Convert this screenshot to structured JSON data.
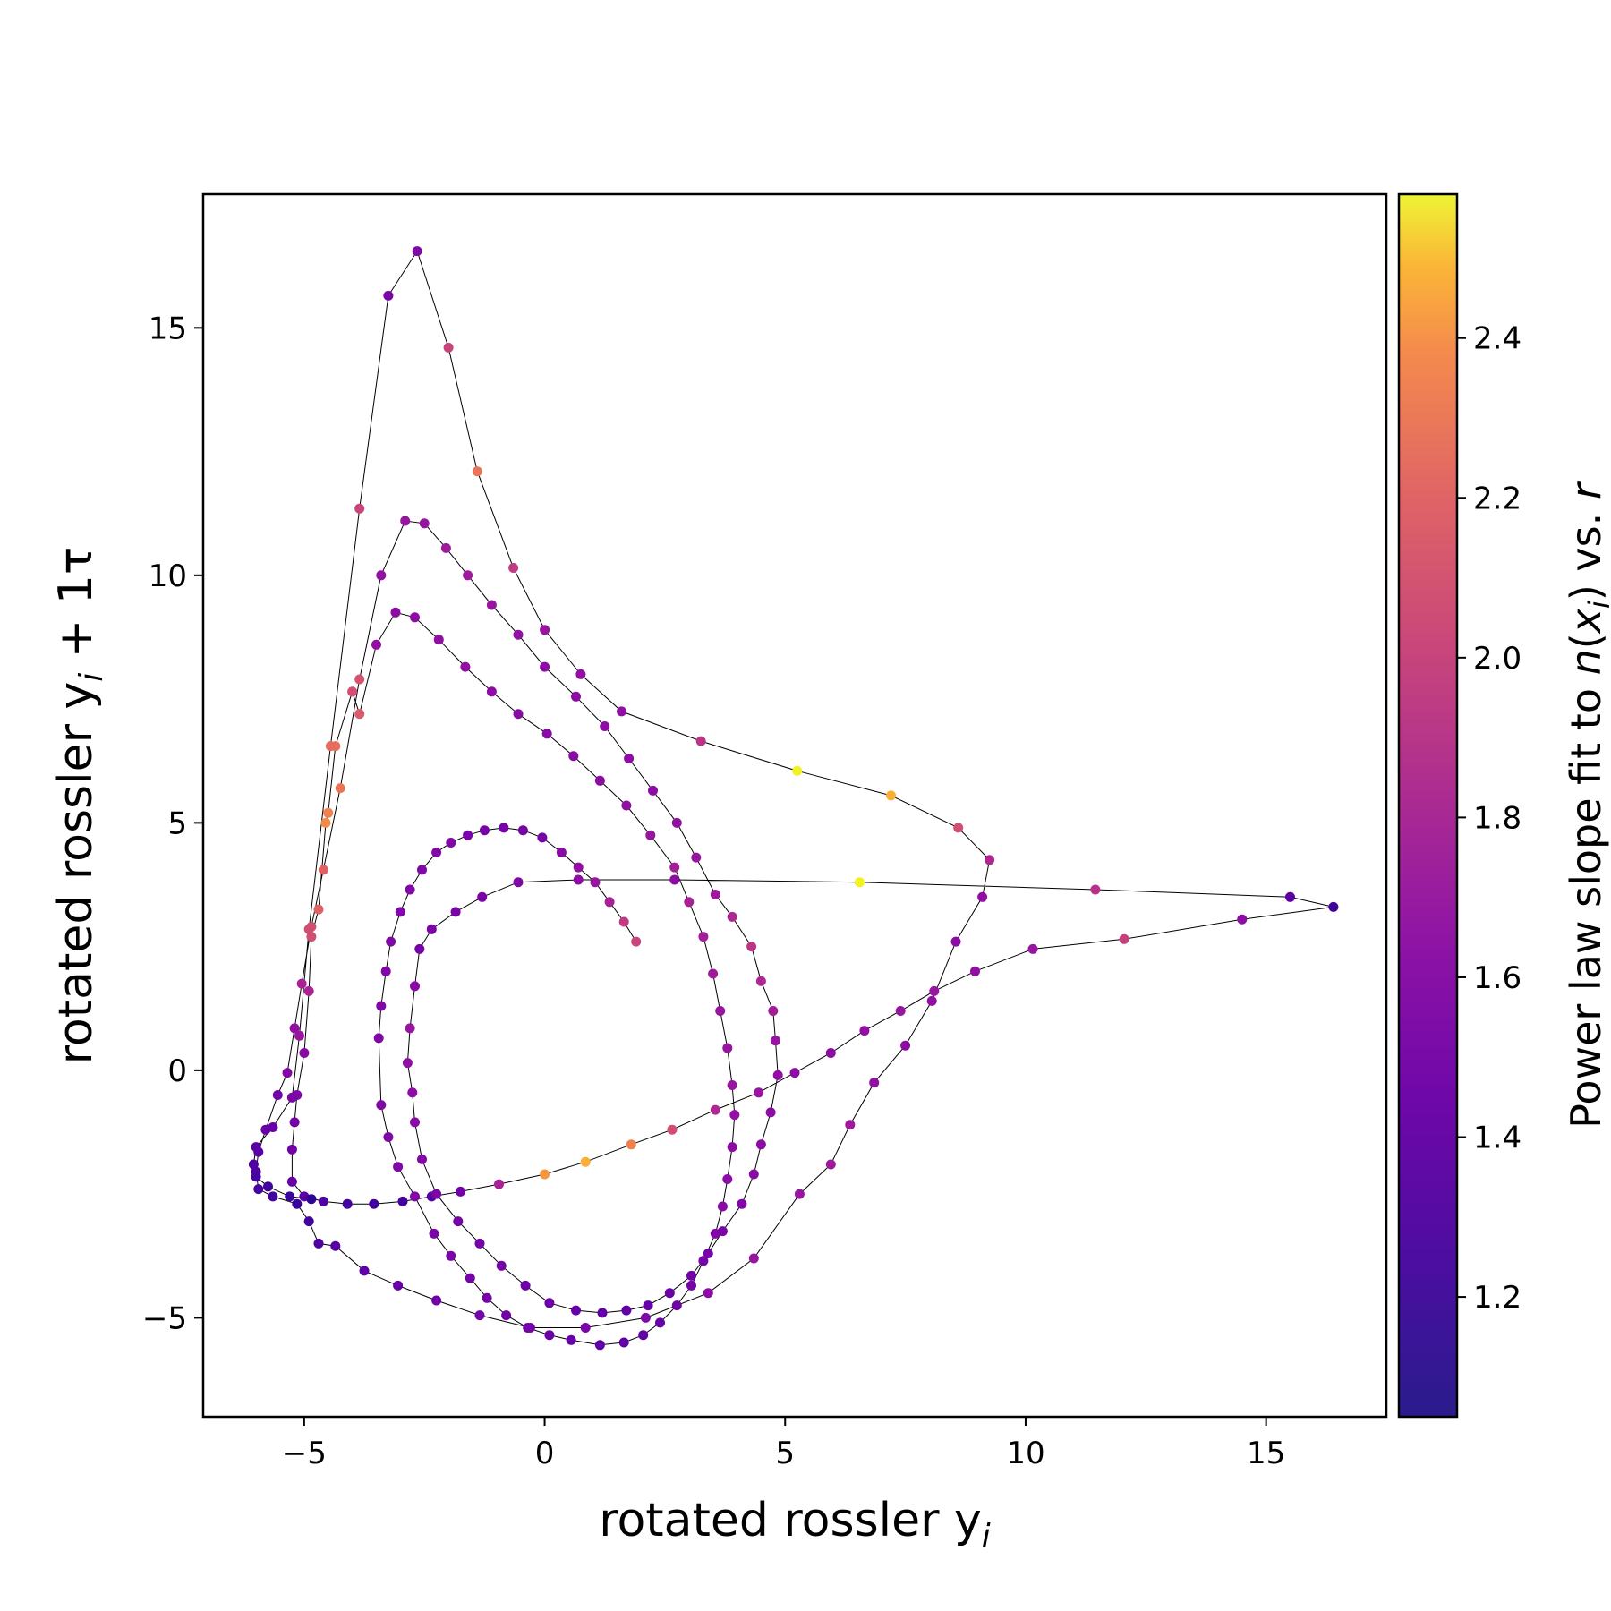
{
  "chart_data": {
    "type": "scatter",
    "xlabel": {
      "main": "rotated rossler y",
      "sub": "i"
    },
    "ylabel": {
      "main": "rotated rossler y",
      "sub": "i",
      "tail": " + 1τ"
    },
    "colorbar_label": {
      "p1": "Power law slope fit to ",
      "n": "n",
      "p2": "(",
      "x": "x",
      "xsub": "i",
      "p3": ") vs. ",
      "r": "r"
    },
    "xlim": [
      -7.1,
      17.5
    ],
    "ylim": [
      -7.0,
      17.7
    ],
    "xticks": [
      -5,
      0,
      5,
      10,
      15
    ],
    "yticks": [
      -5,
      0,
      5,
      10,
      15
    ],
    "xtick_labels": [
      "−5",
      "0",
      "5",
      "10",
      "15"
    ],
    "ytick_labels": [
      "−5",
      "0",
      "5",
      "10",
      "15"
    ],
    "colorbar": {
      "colormap": "plasma",
      "range": [
        1.05,
        2.58
      ],
      "ticks": [
        1.2,
        1.4,
        1.6,
        1.8,
        2.0,
        2.2,
        2.4
      ],
      "tick_labels": [
        "1.2",
        "1.4",
        "1.6",
        "1.8",
        "2.0",
        "2.2",
        "2.4"
      ]
    },
    "line_color": "#000000",
    "grid": false,
    "legend": "none",
    "points": [
      [
        1.9,
        2.6,
        1.8
      ],
      [
        1.65,
        3.0,
        1.75
      ],
      [
        1.35,
        3.4,
        1.62
      ],
      [
        1.05,
        3.8,
        1.55
      ],
      [
        0.7,
        4.1,
        1.52
      ],
      [
        0.35,
        4.4,
        1.48
      ],
      [
        -0.05,
        4.7,
        1.42
      ],
      [
        -0.45,
        4.85,
        1.4
      ],
      [
        -0.85,
        4.9,
        1.4
      ],
      [
        -1.25,
        4.85,
        1.4
      ],
      [
        -1.6,
        4.75,
        1.42
      ],
      [
        -1.95,
        4.6,
        1.45
      ],
      [
        -2.25,
        4.4,
        1.45
      ],
      [
        -2.55,
        4.05,
        1.45
      ],
      [
        -2.8,
        3.65,
        1.45
      ],
      [
        -3.0,
        3.2,
        1.45
      ],
      [
        -3.2,
        2.6,
        1.45
      ],
      [
        -3.3,
        2.0,
        1.45
      ],
      [
        -3.4,
        1.3,
        1.45
      ],
      [
        -3.45,
        0.65,
        1.45
      ],
      [
        -3.4,
        -0.7,
        1.45
      ],
      [
        -3.25,
        -1.35,
        1.45
      ],
      [
        -3.05,
        -1.95,
        1.45
      ],
      [
        -2.7,
        -2.55,
        1.45
      ],
      [
        -2.3,
        -3.3,
        1.42
      ],
      [
        -1.95,
        -3.75,
        1.42
      ],
      [
        -1.55,
        -4.2,
        1.4
      ],
      [
        -1.2,
        -4.6,
        1.4
      ],
      [
        -0.8,
        -4.95,
        1.38
      ],
      [
        -0.35,
        -5.2,
        1.38
      ],
      [
        0.1,
        -5.35,
        1.36
      ],
      [
        0.55,
        -5.45,
        1.34
      ],
      [
        1.15,
        -5.55,
        1.33
      ],
      [
        1.65,
        -5.5,
        1.32
      ],
      [
        2.05,
        -5.35,
        1.33
      ],
      [
        2.4,
        -5.1,
        1.35
      ],
      [
        2.75,
        -4.75,
        1.38
      ],
      [
        3.05,
        -4.35,
        1.4
      ],
      [
        3.3,
        -3.85,
        1.42
      ],
      [
        3.55,
        -3.3,
        1.45
      ],
      [
        3.7,
        -2.75,
        1.48
      ],
      [
        3.8,
        -2.2,
        1.5
      ],
      [
        3.9,
        -1.55,
        1.5
      ],
      [
        3.95,
        -0.9,
        1.52
      ],
      [
        3.9,
        -0.3,
        1.55
      ],
      [
        3.8,
        0.45,
        1.55
      ],
      [
        3.65,
        1.2,
        1.55
      ],
      [
        3.5,
        1.95,
        1.58
      ],
      [
        3.3,
        2.7,
        1.6
      ],
      [
        3.0,
        3.4,
        1.62
      ],
      [
        2.7,
        4.1,
        1.6
      ],
      [
        2.2,
        4.75,
        1.55
      ],
      [
        1.7,
        5.35,
        1.52
      ],
      [
        1.15,
        5.85,
        1.5
      ],
      [
        0.6,
        6.35,
        1.48
      ],
      [
        0.05,
        6.8,
        1.48
      ],
      [
        -0.55,
        7.2,
        1.48
      ],
      [
        -1.1,
        7.65,
        1.5
      ],
      [
        -1.65,
        8.15,
        1.52
      ],
      [
        -2.2,
        8.7,
        1.52
      ],
      [
        -2.7,
        9.15,
        1.5
      ],
      [
        -3.1,
        9.25,
        1.5
      ],
      [
        -3.5,
        8.6,
        1.52
      ],
      [
        -3.85,
        7.2,
        1.92
      ],
      [
        -4.0,
        7.65,
        1.85
      ],
      [
        -4.35,
        6.55,
        2.02
      ],
      [
        -4.5,
        5.2,
        2.1
      ],
      [
        -4.55,
        5.0,
        2.15
      ],
      [
        -4.7,
        3.25,
        1.95
      ],
      [
        -4.85,
        2.7,
        1.85
      ],
      [
        -4.9,
        1.6,
        1.62
      ],
      [
        -5.0,
        0.35,
        1.48
      ],
      [
        -5.15,
        -0.5,
        1.45
      ],
      [
        -5.2,
        -1.05,
        1.4
      ],
      [
        -5.25,
        -1.6,
        1.38
      ],
      [
        -5.25,
        -2.25,
        1.35
      ],
      [
        -5.0,
        -2.55,
        1.3
      ],
      [
        -4.6,
        -2.65,
        1.25
      ],
      [
        -4.1,
        -2.7,
        1.22
      ],
      [
        -3.55,
        -2.7,
        1.2
      ],
      [
        -2.95,
        -2.65,
        1.22
      ],
      [
        -2.35,
        -2.55,
        1.28
      ],
      [
        -1.75,
        -2.45,
        1.38
      ],
      [
        -0.95,
        -2.3,
        1.62
      ],
      [
        0.0,
        -2.1,
        2.2
      ],
      [
        0.85,
        -1.85,
        2.3
      ],
      [
        1.8,
        -1.5,
        2.1
      ],
      [
        2.65,
        -1.2,
        1.85
      ],
      [
        3.55,
        -0.8,
        1.65
      ],
      [
        4.45,
        -0.45,
        1.55
      ],
      [
        5.2,
        -0.05,
        1.5
      ],
      [
        5.95,
        0.35,
        1.5
      ],
      [
        6.65,
        0.8,
        1.52
      ],
      [
        7.4,
        1.2,
        1.55
      ],
      [
        8.1,
        1.6,
        1.55
      ],
      [
        8.95,
        2.0,
        1.52
      ],
      [
        10.15,
        2.45,
        1.55
      ],
      [
        12.05,
        2.65,
        1.78
      ],
      [
        14.5,
        3.05,
        1.5
      ],
      [
        16.4,
        3.3,
        1.2
      ],
      [
        15.5,
        3.5,
        1.3
      ],
      [
        11.45,
        3.65,
        1.7
      ],
      [
        6.55,
        3.8,
        2.55
      ],
      [
        2.7,
        3.85,
        1.5
      ],
      [
        0.7,
        3.85,
        1.5
      ],
      [
        -0.55,
        3.8,
        1.45
      ],
      [
        -1.3,
        3.5,
        1.42
      ],
      [
        -1.85,
        3.2,
        1.42
      ],
      [
        -2.35,
        2.85,
        1.42
      ],
      [
        -2.6,
        2.45,
        1.4
      ],
      [
        -2.7,
        1.7,
        1.48
      ],
      [
        -2.8,
        0.85,
        1.55
      ],
      [
        -2.85,
        0.15,
        1.52
      ],
      [
        -2.75,
        -0.45,
        1.5
      ],
      [
        -2.7,
        -1.05,
        1.48
      ],
      [
        -2.55,
        -1.8,
        1.45
      ],
      [
        -2.25,
        -2.5,
        1.42
      ],
      [
        -1.8,
        -3.05,
        1.4
      ],
      [
        -1.35,
        -3.5,
        1.4
      ],
      [
        -0.9,
        -3.95,
        1.4
      ],
      [
        -0.4,
        -4.35,
        1.38
      ],
      [
        0.1,
        -4.7,
        1.37
      ],
      [
        0.65,
        -4.85,
        1.35
      ],
      [
        1.2,
        -4.9,
        1.33
      ],
      [
        1.7,
        -4.85,
        1.33
      ],
      [
        2.15,
        -4.75,
        1.34
      ],
      [
        2.6,
        -4.5,
        1.36
      ],
      [
        3.05,
        -4.15,
        1.38
      ],
      [
        3.4,
        -3.7,
        1.4
      ],
      [
        3.7,
        -3.25,
        1.42
      ],
      [
        4.1,
        -2.7,
        1.45
      ],
      [
        4.35,
        -2.1,
        1.48
      ],
      [
        4.5,
        -1.5,
        1.5
      ],
      [
        4.7,
        -0.85,
        1.5
      ],
      [
        4.85,
        -0.1,
        1.52
      ],
      [
        4.8,
        0.6,
        1.55
      ],
      [
        4.75,
        1.2,
        1.6
      ],
      [
        4.5,
        1.8,
        1.65
      ],
      [
        4.3,
        2.5,
        1.72
      ],
      [
        3.9,
        3.1,
        1.65
      ],
      [
        3.55,
        3.55,
        1.58
      ],
      [
        3.15,
        4.3,
        1.55
      ],
      [
        2.75,
        5.0,
        1.52
      ],
      [
        2.25,
        5.65,
        1.5
      ],
      [
        1.75,
        6.3,
        1.5
      ],
      [
        1.25,
        6.95,
        1.5
      ],
      [
        0.65,
        7.55,
        1.5
      ],
      [
        0.0,
        8.15,
        1.5
      ],
      [
        -0.55,
        8.8,
        1.52
      ],
      [
        -1.1,
        9.4,
        1.55
      ],
      [
        -1.6,
        10.0,
        1.58
      ],
      [
        -2.05,
        10.55,
        1.58
      ],
      [
        -2.5,
        11.05,
        1.55
      ],
      [
        -2.9,
        11.1,
        1.55
      ],
      [
        -3.4,
        10.0,
        1.52
      ],
      [
        -3.85,
        7.9,
        1.88
      ],
      [
        -4.25,
        5.7,
        2.05
      ],
      [
        -4.6,
        4.05,
        1.95
      ],
      [
        -4.85,
        2.9,
        1.85
      ],
      [
        -5.05,
        1.75,
        1.62
      ],
      [
        -5.2,
        0.85,
        1.52
      ],
      [
        -5.35,
        -0.05,
        1.45
      ],
      [
        -5.55,
        -0.5,
        1.4
      ],
      [
        -5.8,
        -1.2,
        1.35
      ],
      [
        -5.95,
        -1.65,
        1.3
      ],
      [
        -6.0,
        -2.05,
        1.25
      ],
      [
        -5.95,
        -2.4,
        1.22
      ],
      [
        -5.65,
        -2.55,
        1.2
      ],
      [
        -5.15,
        -2.7,
        1.18
      ],
      [
        -4.9,
        -3.05,
        1.2
      ],
      [
        -4.7,
        -3.5,
        1.25
      ],
      [
        -4.35,
        -3.55,
        1.28
      ],
      [
        -3.75,
        -4.05,
        1.32
      ],
      [
        -3.05,
        -4.35,
        1.35
      ],
      [
        -2.25,
        -4.65,
        1.38
      ],
      [
        -1.35,
        -4.95,
        1.4
      ],
      [
        -0.3,
        -5.2,
        1.4
      ],
      [
        0.85,
        -5.2,
        1.42
      ],
      [
        2.1,
        -5.0,
        1.45
      ],
      [
        3.4,
        -4.5,
        1.5
      ],
      [
        4.35,
        -3.8,
        1.55
      ],
      [
        5.3,
        -2.5,
        1.55
      ],
      [
        5.95,
        -1.9,
        1.58
      ],
      [
        6.35,
        -1.1,
        1.58
      ],
      [
        6.85,
        -0.25,
        1.52
      ],
      [
        7.5,
        0.5,
        1.5
      ],
      [
        8.05,
        1.4,
        1.52
      ],
      [
        8.55,
        2.6,
        1.5
      ],
      [
        9.1,
        3.5,
        1.52
      ],
      [
        9.25,
        4.25,
        1.65
      ],
      [
        8.6,
        4.9,
        1.85
      ],
      [
        7.2,
        5.55,
        2.3
      ],
      [
        5.25,
        6.05,
        2.55
      ],
      [
        3.25,
        6.65,
        1.72
      ],
      [
        1.6,
        7.25,
        1.52
      ],
      [
        0.75,
        8.0,
        1.52
      ],
      [
        0.0,
        8.9,
        1.55
      ],
      [
        -0.65,
        10.15,
        1.75
      ],
      [
        -1.4,
        12.1,
        2.05
      ],
      [
        -2.0,
        14.6,
        1.8
      ],
      [
        -2.65,
        16.55,
        1.45
      ],
      [
        -3.25,
        15.65,
        1.42
      ],
      [
        -3.85,
        11.35,
        1.8
      ],
      [
        -4.45,
        6.55,
        2.0
      ],
      [
        -4.9,
        2.85,
        1.85
      ],
      [
        -5.1,
        0.7,
        1.55
      ],
      [
        -5.25,
        -0.55,
        1.42
      ],
      [
        -5.65,
        -1.15,
        1.35
      ],
      [
        -6.0,
        -1.55,
        1.3
      ],
      [
        -6.05,
        -1.9,
        1.25
      ],
      [
        -6.0,
        -2.15,
        1.22
      ],
      [
        -5.75,
        -2.35,
        1.2
      ],
      [
        -5.3,
        -2.55,
        1.18
      ],
      [
        -4.85,
        -2.6,
        1.15
      ]
    ]
  }
}
